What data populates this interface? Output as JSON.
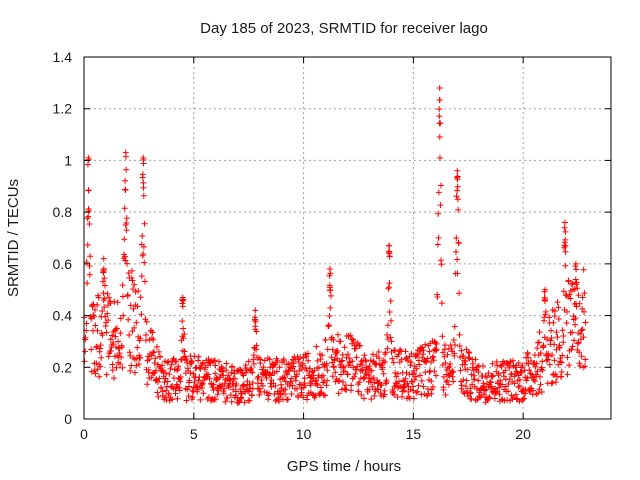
{
  "chart_data": {
    "type": "scatter",
    "title": "Day 185 of 2023, SRMTID for receiver lago",
    "xlabel": "GPS time / hours",
    "ylabel": "SRMTID / TECUs",
    "xlim": [
      0,
      24
    ],
    "ylim": [
      0,
      1.4
    ],
    "x_ticks": [
      0,
      5,
      10,
      15,
      20
    ],
    "x_tick_labels": [
      "0",
      "5",
      "10",
      "15",
      "20"
    ],
    "y_ticks": [
      0,
      0.2,
      0.4,
      0.6,
      0.8,
      1.0,
      1.2,
      1.4
    ],
    "y_tick_labels": [
      "0",
      "0.2",
      "0.4",
      "0.6",
      "0.8",
      "1",
      "1.2",
      "1.4"
    ],
    "grid": true,
    "marker": "+",
    "marker_color": "#ff0000",
    "background_level": [
      [
        0.0,
        0.26
      ],
      [
        0.5,
        0.3
      ],
      [
        1.0,
        0.36
      ],
      [
        1.5,
        0.3
      ],
      [
        2.0,
        0.4
      ],
      [
        2.5,
        0.32
      ],
      [
        3.0,
        0.24
      ],
      [
        3.5,
        0.16
      ],
      [
        4.0,
        0.15
      ],
      [
        5.0,
        0.16
      ],
      [
        6.0,
        0.15
      ],
      [
        7.0,
        0.13
      ],
      [
        8.0,
        0.16
      ],
      [
        9.0,
        0.15
      ],
      [
        10.0,
        0.16
      ],
      [
        11.0,
        0.2
      ],
      [
        12.0,
        0.22
      ],
      [
        13.0,
        0.16
      ],
      [
        14.0,
        0.18
      ],
      [
        15.0,
        0.17
      ],
      [
        16.0,
        0.2
      ],
      [
        17.0,
        0.2
      ],
      [
        18.0,
        0.14
      ],
      [
        19.0,
        0.15
      ],
      [
        20.0,
        0.15
      ],
      [
        21.0,
        0.24
      ],
      [
        22.0,
        0.35
      ],
      [
        22.8,
        0.38
      ]
    ],
    "peaks": [
      {
        "x": 0.2,
        "y": 1.01
      },
      {
        "x": 0.9,
        "y": 0.62
      },
      {
        "x": 1.9,
        "y": 1.03
      },
      {
        "x": 2.7,
        "y": 1.01
      },
      {
        "x": 4.5,
        "y": 0.47
      },
      {
        "x": 7.8,
        "y": 0.42
      },
      {
        "x": 11.2,
        "y": 0.58
      },
      {
        "x": 13.9,
        "y": 0.67
      },
      {
        "x": 16.2,
        "y": 1.28
      },
      {
        "x": 17.0,
        "y": 0.96
      },
      {
        "x": 21.0,
        "y": 0.5
      },
      {
        "x": 21.9,
        "y": 0.76
      },
      {
        "x": 22.4,
        "y": 0.6
      }
    ]
  }
}
